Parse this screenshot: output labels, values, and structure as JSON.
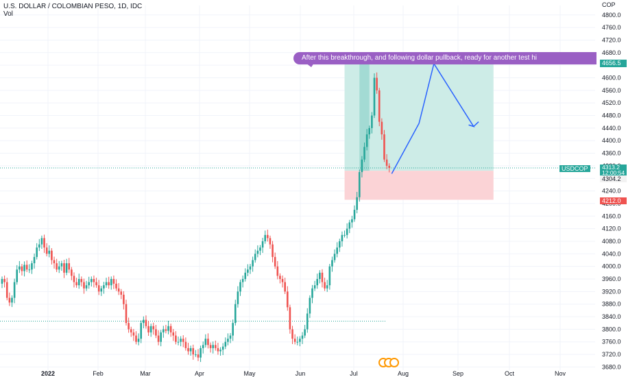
{
  "header": {
    "symbol_title": "U.S. DOLLAR / COLOMBIAN PESO, 1D, IDC",
    "volume_label": "Vol"
  },
  "idea_text": "After this breakthrough, and following dollar pullback, ready for another test hi",
  "price_tags": {
    "symbol": "USDCOP",
    "last_price": "4313.2",
    "countdown": "12:00:54",
    "entry": "4304.2",
    "target": "4656.5",
    "stop": "4212.0"
  },
  "colors": {
    "up": "#26a69a",
    "down": "#ef5350",
    "profit_zone": "#cdece7",
    "loss_zone": "#fbd3d6",
    "projection": "#2962ff",
    "idea": "#9a5fc4",
    "grid": "#f0f3fa",
    "axis_text": "#131722"
  },
  "chart_data": {
    "type": "candlestick",
    "title": "U.S. DOLLAR / COLOMBIAN PESO, 1D, IDC",
    "currency_label": "COP",
    "ylim": [
      3670,
      4830
    ],
    "y_ticks": [
      3680,
      3720,
      3760,
      3800,
      3840,
      3880,
      3920,
      3960,
      4000,
      4040,
      4080,
      4120,
      4160,
      4200,
      4240,
      4280,
      4320,
      4360,
      4400,
      4440,
      4480,
      4520,
      4560,
      4600,
      4640,
      4680,
      4720,
      4760,
      4800
    ],
    "y_tick_labels": [
      "3680.0",
      "3720.0",
      "3760.0",
      "3800.0",
      "3840.0",
      "3880.0",
      "3920.0",
      "3960.0",
      "4000.0",
      "4040.0",
      "4080.0",
      "4120.0",
      "4160.0",
      "4200.0",
      "4240.0",
      "4280.0",
      "4320.0",
      "4360.0",
      "4400.0",
      "4440.0",
      "4480.0",
      "4520.0",
      "4560.0",
      "4600.0",
      "4640.0",
      "4680.0",
      "4720.0",
      "4760.0",
      "4800.0"
    ],
    "x_ticks": [
      "2022",
      "Feb",
      "Mar",
      "Apr",
      "May",
      "Jun",
      "Jul",
      "Aug",
      "Sep",
      "Oct",
      "Nov"
    ],
    "grid": true,
    "close": [
      3960,
      3950,
      3900,
      3885,
      3900,
      3950,
      3990,
      4000,
      3985,
      4005,
      3990,
      3990,
      4010,
      4030,
      4060,
      4070,
      4090,
      4060,
      4040,
      4050,
      4020,
      4010,
      3990,
      4000,
      4010,
      3980,
      4010,
      3990,
      3970,
      3950,
      3940,
      3960,
      3950,
      3930,
      3940,
      3950,
      3960,
      3950,
      3940,
      3920,
      3930,
      3940,
      3950,
      3940,
      3960,
      3945,
      3930,
      3920,
      3910,
      3880,
      3820,
      3800,
      3790,
      3780,
      3760,
      3770,
      3820,
      3830,
      3810,
      3790,
      3810,
      3800,
      3780,
      3760,
      3790,
      3800,
      3795,
      3810,
      3790,
      3780,
      3760,
      3760,
      3770,
      3760,
      3740,
      3730,
      3740,
      3720,
      3720,
      3710,
      3740,
      3750,
      3770,
      3750,
      3740,
      3750,
      3740,
      3730,
      3735,
      3745,
      3760,
      3770,
      3780,
      3820,
      3880,
      3920,
      3950,
      3960,
      3980,
      3990,
      4000,
      4020,
      4040,
      4050,
      4060,
      4080,
      4100,
      4090,
      4070,
      4030,
      4000,
      3970,
      3960,
      3950,
      3920,
      3870,
      3800,
      3770,
      3760,
      3760,
      3770,
      3780,
      3800,
      3850,
      3900,
      3930,
      3940,
      3960,
      3980,
      3950,
      3930,
      3940,
      4000,
      4020,
      4040,
      4060,
      4080,
      4100,
      4100,
      4120,
      4140,
      4150,
      4180,
      4220,
      4300,
      4340,
      4380,
      4420,
      4440,
      4480,
      4600,
      4560,
      4460,
      4420,
      4340,
      4320,
      4313.2
    ]
  },
  "position": {
    "entry": 4304.2,
    "target": 4656.5,
    "stop": 4212.0,
    "start_index": 138,
    "end_index": 198
  },
  "projection": [
    {
      "index": 157,
      "price": 4295
    },
    {
      "index": 168,
      "price": 4455
    },
    {
      "index": 174,
      "price": 4645
    },
    {
      "index": 190,
      "price": 4445
    },
    {
      "index": 188,
      "price": 4450
    },
    {
      "index": 190,
      "price": 4445
    },
    {
      "index": 192,
      "price": 4460
    }
  ],
  "reference_lines": [
    {
      "price": 4313.2,
      "style": "dotted",
      "color": "#26a69a"
    },
    {
      "price": 3826,
      "style": "dotted",
      "color": "#26a69a"
    }
  ]
}
